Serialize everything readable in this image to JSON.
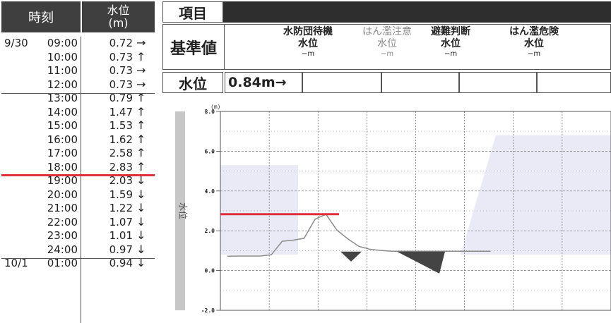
{
  "left_table": {
    "header_time": "時刻",
    "header_level": "水位\n(m)",
    "rows": [
      {
        "date": "9/30",
        "time": "09:00",
        "value": "0.72",
        "arrow": "→"
      },
      {
        "date": "",
        "time": "10:00",
        "value": "0.73",
        "arrow": "↑"
      },
      {
        "date": "",
        "time": "11:00",
        "value": "0.73",
        "arrow": "→"
      },
      {
        "date": "",
        "time": "12:00",
        "value": "0.73",
        "arrow": "→"
      },
      {
        "date": "",
        "time": "13:00",
        "value": "0.79",
        "arrow": "↑"
      },
      {
        "date": "",
        "time": "14:00",
        "value": "1.47",
        "arrow": "↑"
      },
      {
        "date": "",
        "time": "15:00",
        "value": "1.53",
        "arrow": "↑"
      },
      {
        "date": "",
        "time": "16:00",
        "value": "1.62",
        "arrow": "↑"
      },
      {
        "date": "",
        "time": "17:00",
        "value": "2.58",
        "arrow": "↑"
      },
      {
        "date": "",
        "time": "18:00",
        "value": "2.83",
        "arrow": "↑"
      },
      {
        "date": "",
        "time": "19:00",
        "value": "2.03",
        "arrow": "↓"
      },
      {
        "date": "",
        "time": "20:00",
        "value": "1.59",
        "arrow": "↓"
      },
      {
        "date": "",
        "time": "21:00",
        "value": "1.22",
        "arrow": "↓"
      },
      {
        "date": "",
        "time": "22:00",
        "value": "1.07",
        "arrow": "↓"
      },
      {
        "date": "",
        "time": "23:00",
        "value": "1.01",
        "arrow": "↓"
      },
      {
        "date": "",
        "time": "24:00",
        "value": "0.97",
        "arrow": "↓"
      },
      {
        "date": "10/1",
        "time": "01:00",
        "value": "0.94",
        "arrow": "↓"
      }
    ]
  },
  "right_table": {
    "item_label": "項目",
    "kijun_label": "基準値",
    "levels": [
      {
        "name": "水防団待機",
        "sub": "水位",
        "value": "−m",
        "muted": false
      },
      {
        "name": "はん濫注意",
        "sub": "水位",
        "value": "−m",
        "muted": true
      },
      {
        "name": "避難判断",
        "sub": "水位",
        "value": "−m",
        "muted": false
      },
      {
        "name": "はん濫危険",
        "sub": "水位",
        "value": "−m",
        "muted": false
      }
    ],
    "suii_label": "水位",
    "current_value": "0.84m→"
  },
  "colors": {
    "header_bg": "#3f3f3f",
    "highlight_red": "#e0303c",
    "chart_fill": "#eaeaf6",
    "axis_bar": "#c7c7c7"
  },
  "chart_data": {
    "type": "line",
    "yunit": "(m)",
    "ylabel": "水位",
    "ylim": [
      -2.0,
      8.0
    ],
    "yticks": [
      "8.0",
      "6.0",
      "4.0",
      "2.0",
      "0.0",
      "-2.0"
    ],
    "series": [
      {
        "x": [
          0,
          1,
          2,
          3,
          4,
          5,
          6,
          7,
          8,
          9,
          10,
          11,
          12,
          13,
          14,
          15
        ],
        "values": [
          0.72,
          0.73,
          0.73,
          0.73,
          0.79,
          1.47,
          1.53,
          1.62,
          2.58,
          2.83,
          2.03,
          1.59,
          1.22,
          1.07,
          1.01,
          0.97
        ]
      }
    ],
    "reference_level": 2.83
  }
}
